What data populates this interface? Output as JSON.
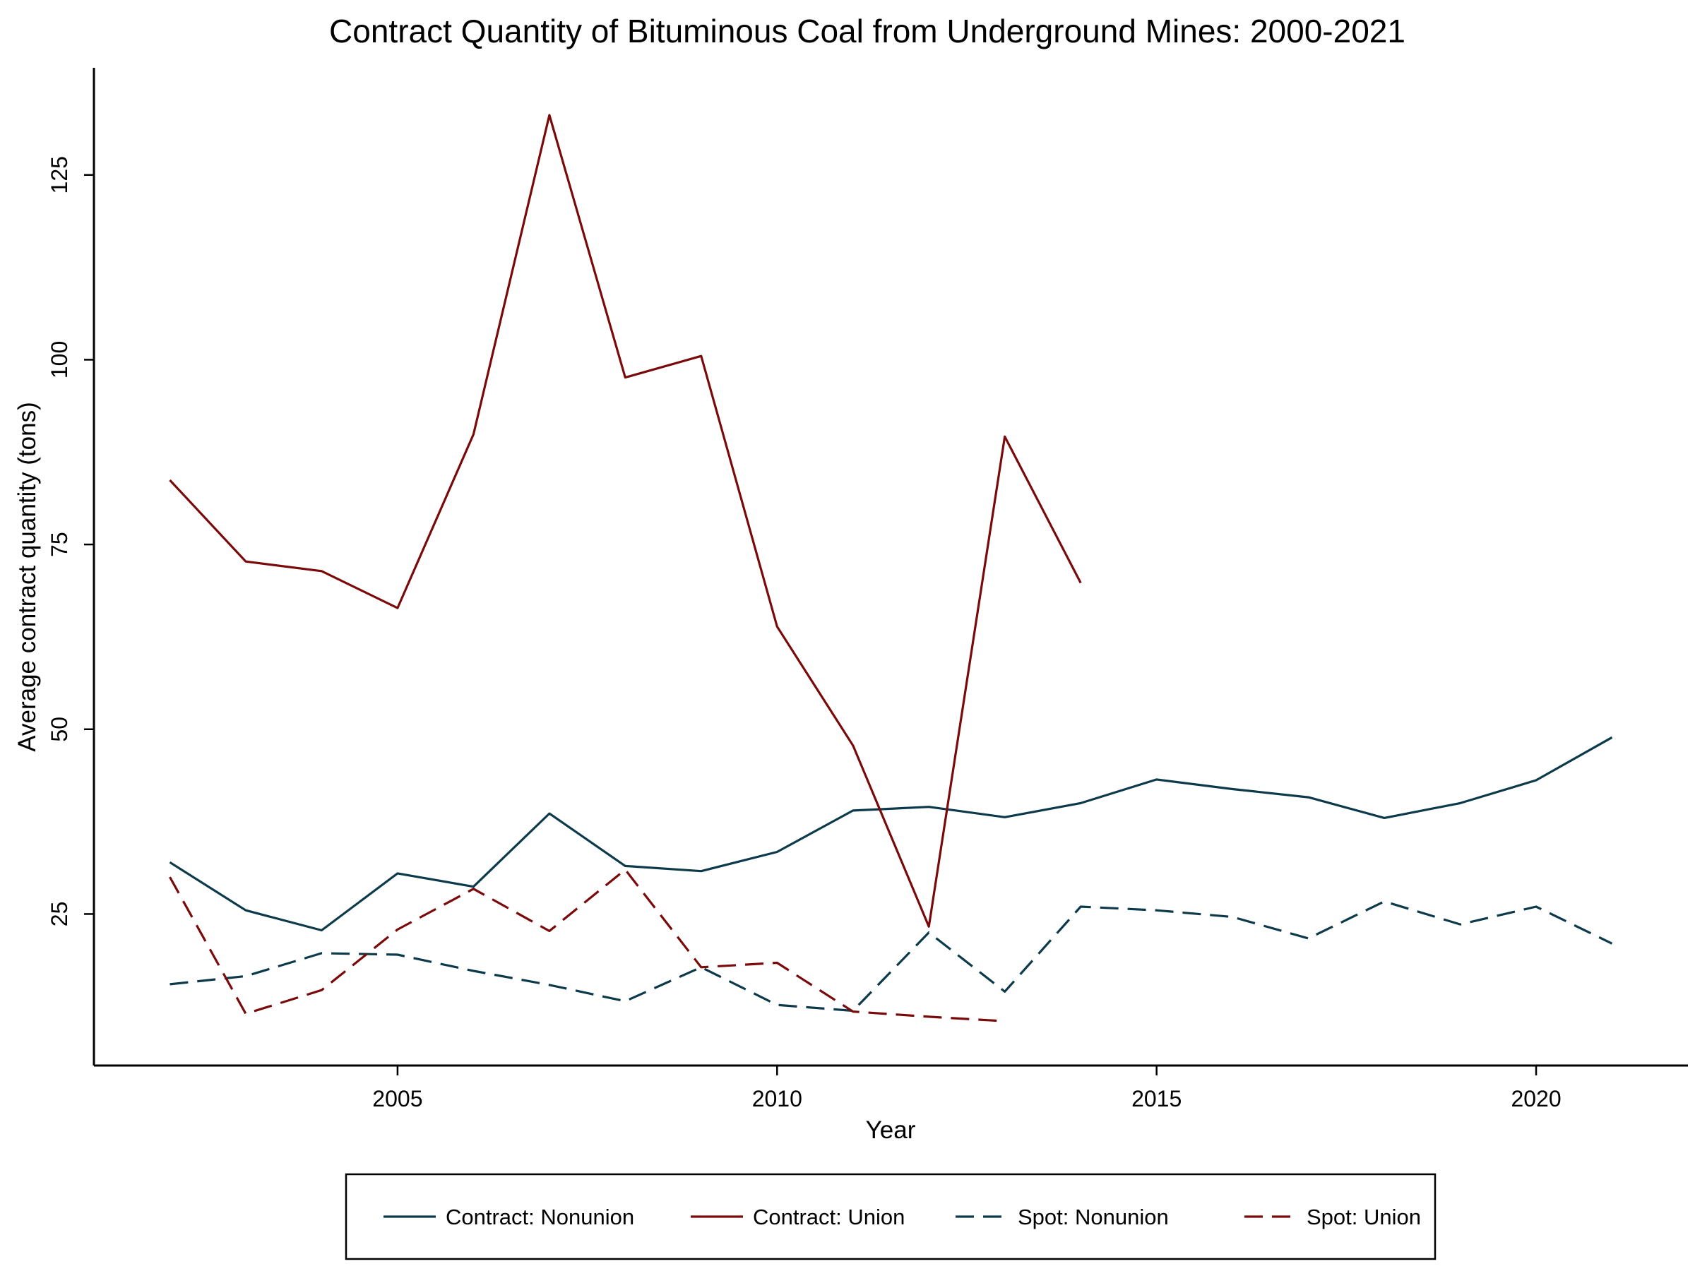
{
  "chart_data": {
    "type": "line",
    "title": "Contract Quantity of Bituminous Coal from Underground Mines: 2000-2021",
    "xlabel": "Year",
    "ylabel": "Average contract quantity (tons)",
    "xlim": [
      2001.0,
      2022.0
    ],
    "ylim": [
      4.5,
      139.5
    ],
    "x_ticks": [
      2005,
      2010,
      2015,
      2020
    ],
    "y_ticks": [
      25,
      50,
      75,
      100,
      125
    ],
    "grid": false,
    "legend_position": "bottom",
    "series": [
      {
        "name": "Contract: Nonunion",
        "color": "#0d3a4a",
        "dash": "solid",
        "x": [
          2002,
          2003,
          2004,
          2005,
          2006,
          2007,
          2008,
          2009,
          2010,
          2011,
          2012,
          2013,
          2014,
          2015,
          2016,
          2017,
          2018,
          2019,
          2020,
          2021
        ],
        "y": [
          32.0,
          25.5,
          22.8,
          30.5,
          28.7,
          38.6,
          31.5,
          30.8,
          33.4,
          39.0,
          39.5,
          38.1,
          40.0,
          43.2,
          41.9,
          40.8,
          38.0,
          40.0,
          43.1,
          48.9
        ]
      },
      {
        "name": "Contract: Union",
        "color": "#7a0a0a",
        "dash": "solid",
        "x": [
          2002,
          2003,
          2004,
          2005,
          2006,
          2007,
          2008,
          2009,
          2010,
          2011,
          2012,
          2013,
          2014
        ],
        "y": [
          83.7,
          72.7,
          71.4,
          66.4,
          89.9,
          133.1,
          97.6,
          100.5,
          63.9,
          47.8,
          23.3,
          89.6,
          69.8
        ]
      },
      {
        "name": "Spot: Nonunion",
        "color": "#0d3a4a",
        "dash": "dashed",
        "x": [
          2002,
          2003,
          2004,
          2005,
          2006,
          2007,
          2008,
          2009,
          2010,
          2011,
          2012,
          2013,
          2014,
          2015,
          2016,
          2017,
          2018,
          2019,
          2020,
          2021
        ],
        "y": [
          15.5,
          16.6,
          19.7,
          19.5,
          17.3,
          15.4,
          13.2,
          17.8,
          12.7,
          11.9,
          22.5,
          14.5,
          26.0,
          25.5,
          24.6,
          21.7,
          26.7,
          23.6,
          26.0,
          21.0
        ]
      },
      {
        "name": "Spot: Union",
        "color": "#7a0a0a",
        "dash": "dashed",
        "x": [
          2002,
          2003,
          2004,
          2005,
          2006,
          2007,
          2008,
          2009,
          2010,
          2011,
          2012,
          2013
        ],
        "y": [
          30.0,
          11.5,
          14.7,
          22.9,
          28.4,
          22.7,
          31.0,
          17.8,
          18.4,
          11.8,
          11.1,
          10.5
        ]
      }
    ]
  }
}
